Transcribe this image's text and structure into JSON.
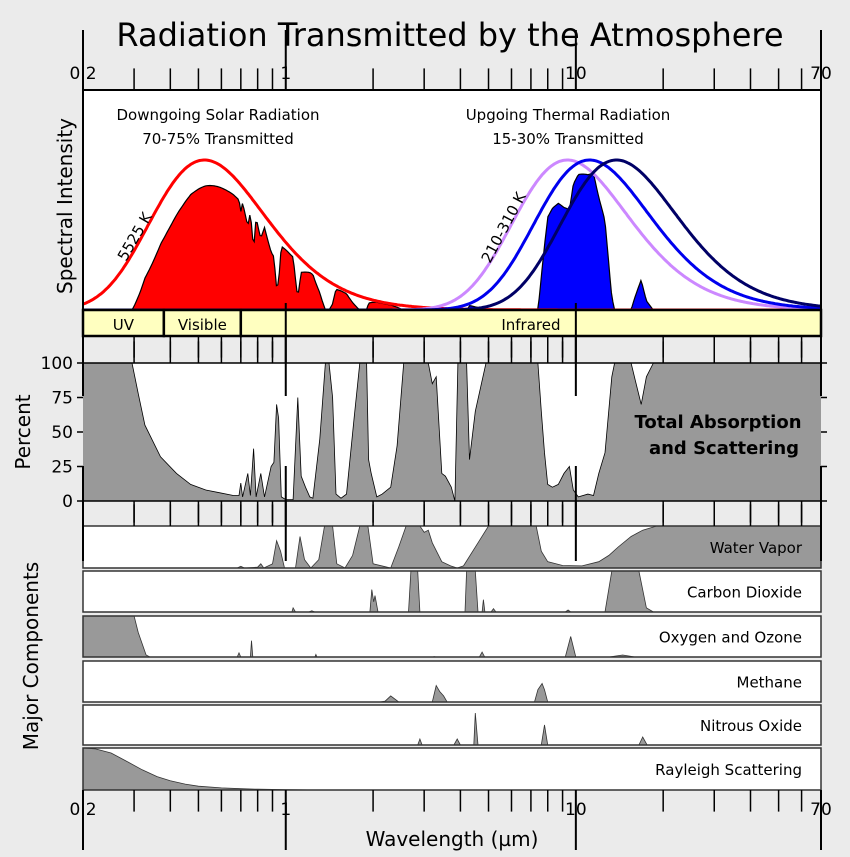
{
  "chart_data": {
    "type": "area",
    "title": "Radiation Transmitted by the Atmosphere",
    "xlabel": "Wavelength (µm)",
    "x_scale": "log",
    "xlim": [
      0.2,
      70
    ],
    "x_tick_labels": [
      "0.2",
      "1",
      "10",
      "70"
    ],
    "x_ticks": [
      0.2,
      1,
      10,
      70
    ],
    "grid": false,
    "colors": {
      "background": "#ebebeb",
      "solar": "#ff0000",
      "thermal_fill": "#0000ff",
      "thermal_curves": [
        "#cc88ff",
        "#0000ee",
        "#000066"
      ],
      "absorption_fill": "#999999",
      "band_fill": "#ffffc0"
    },
    "spectral_panel": {
      "ylabel": "Spectral Intensity",
      "solar": {
        "heading": "Downgoing Solar Radiation",
        "subheading": "70-75% Transmitted",
        "label": "5525 K",
        "temperature_K": 5525
      },
      "thermal": {
        "heading": "Upgoing Thermal Radiation",
        "subheading": "15-30% Transmitted",
        "label": "210-310 K",
        "temperatures_K": [
          310,
          260,
          210
        ]
      },
      "bands": [
        {
          "name": "UV",
          "range": [
            0.2,
            0.38
          ]
        },
        {
          "name": "Visible",
          "range": [
            0.38,
            0.7
          ]
        },
        {
          "name": "Infrared",
          "range": [
            0.7,
            70
          ]
        }
      ]
    },
    "total_panel": {
      "ylabel": "Percent",
      "ylim": [
        0,
        100
      ],
      "y_tick_labels": [
        "0",
        "25",
        "50",
        "75",
        "100"
      ],
      "y_ticks": [
        0,
        25,
        50,
        75,
        100
      ],
      "label_line1": "Total Absorption",
      "label_line2": "and Scattering",
      "series": [
        [
          0.2,
          100
        ],
        [
          0.295,
          100
        ],
        [
          0.31,
          78
        ],
        [
          0.327,
          55
        ],
        [
          0.37,
          32
        ],
        [
          0.42,
          20
        ],
        [
          0.47,
          12
        ],
        [
          0.53,
          8
        ],
        [
          0.59,
          6
        ],
        [
          0.66,
          4
        ],
        [
          0.69,
          4
        ],
        [
          0.7,
          13
        ],
        [
          0.71,
          3
        ],
        [
          0.74,
          20
        ],
        [
          0.755,
          4
        ],
        [
          0.775,
          38
        ],
        [
          0.79,
          3
        ],
        [
          0.82,
          20
        ],
        [
          0.845,
          3
        ],
        [
          0.89,
          25
        ],
        [
          0.91,
          28
        ],
        [
          0.93,
          70
        ],
        [
          0.945,
          60
        ],
        [
          0.965,
          3
        ],
        [
          1.0,
          1
        ],
        [
          1.06,
          1
        ],
        [
          1.1,
          75
        ],
        [
          1.13,
          18
        ],
        [
          1.17,
          10
        ],
        [
          1.21,
          3
        ],
        [
          1.24,
          2
        ],
        [
          1.31,
          45
        ],
        [
          1.37,
          100
        ],
        [
          1.41,
          100
        ],
        [
          1.45,
          75
        ],
        [
          1.49,
          5
        ],
        [
          1.55,
          2
        ],
        [
          1.62,
          5
        ],
        [
          1.72,
          60
        ],
        [
          1.8,
          100
        ],
        [
          1.9,
          100
        ],
        [
          1.93,
          30
        ],
        [
          1.97,
          20
        ],
        [
          2.06,
          3
        ],
        [
          2.15,
          5
        ],
        [
          2.3,
          10
        ],
        [
          2.42,
          40
        ],
        [
          2.55,
          100
        ],
        [
          3.1,
          100
        ],
        [
          3.2,
          85
        ],
        [
          3.3,
          90
        ],
        [
          3.45,
          20
        ],
        [
          3.55,
          18
        ],
        [
          3.72,
          10
        ],
        [
          3.83,
          0
        ],
        [
          3.92,
          100
        ],
        [
          4.2,
          100
        ],
        [
          4.3,
          30
        ],
        [
          4.5,
          65
        ],
        [
          4.9,
          100
        ],
        [
          7.4,
          100
        ],
        [
          7.6,
          65
        ],
        [
          7.8,
          35
        ],
        [
          8.0,
          12
        ],
        [
          8.3,
          10
        ],
        [
          8.7,
          12
        ],
        [
          9.1,
          20
        ],
        [
          9.5,
          25
        ],
        [
          9.8,
          8
        ],
        [
          10.2,
          3
        ],
        [
          11.0,
          5
        ],
        [
          11.5,
          4
        ],
        [
          12.0,
          20
        ],
        [
          12.6,
          35
        ],
        [
          13.3,
          90
        ],
        [
          13.6,
          100
        ],
        [
          15.5,
          100
        ],
        [
          16.0,
          88
        ],
        [
          16.8,
          70
        ],
        [
          17.5,
          90
        ],
        [
          18.5,
          100
        ],
        [
          70,
          100
        ]
      ]
    },
    "components_panel": {
      "ylabel": "Major Components",
      "components": [
        {
          "name": "Water Vapor",
          "series": [
            [
              0.2,
              0
            ],
            [
              0.68,
              0
            ],
            [
              0.7,
              4
            ],
            [
              0.72,
              0
            ],
            [
              0.8,
              2
            ],
            [
              0.82,
              10
            ],
            [
              0.84,
              0
            ],
            [
              0.9,
              10
            ],
            [
              0.93,
              65
            ],
            [
              0.96,
              40
            ],
            [
              0.99,
              0
            ],
            [
              1.08,
              0
            ],
            [
              1.12,
              75
            ],
            [
              1.16,
              20
            ],
            [
              1.22,
              0
            ],
            [
              1.3,
              20
            ],
            [
              1.36,
              100
            ],
            [
              1.45,
              100
            ],
            [
              1.5,
              10
            ],
            [
              1.6,
              0
            ],
            [
              1.7,
              30
            ],
            [
              1.8,
              100
            ],
            [
              1.92,
              100
            ],
            [
              2.0,
              10
            ],
            [
              2.3,
              0
            ],
            [
              2.45,
              50
            ],
            [
              2.6,
              100
            ],
            [
              2.9,
              100
            ],
            [
              3.0,
              85
            ],
            [
              3.1,
              90
            ],
            [
              3.2,
              60
            ],
            [
              3.45,
              15
            ],
            [
              3.7,
              5
            ],
            [
              3.9,
              0
            ],
            [
              4.1,
              5
            ],
            [
              4.6,
              60
            ],
            [
              5.0,
              100
            ],
            [
              7.3,
              100
            ],
            [
              7.6,
              40
            ],
            [
              8.0,
              15
            ],
            [
              9.0,
              6
            ],
            [
              10.5,
              5
            ],
            [
              12.0,
              15
            ],
            [
              13.0,
              30
            ],
            [
              14.0,
              50
            ],
            [
              15.5,
              75
            ],
            [
              17.0,
              90
            ],
            [
              19.0,
              100
            ],
            [
              70,
              100
            ]
          ]
        },
        {
          "name": "Carbon Dioxide",
          "series": [
            [
              0.2,
              0
            ],
            [
              1.05,
              0
            ],
            [
              1.06,
              10
            ],
            [
              1.08,
              0
            ],
            [
              1.2,
              0
            ],
            [
              1.23,
              3
            ],
            [
              1.26,
              0
            ],
            [
              1.95,
              0
            ],
            [
              1.98,
              55
            ],
            [
              2.01,
              25
            ],
            [
              2.03,
              40
            ],
            [
              2.08,
              0
            ],
            [
              2.65,
              0
            ],
            [
              2.7,
              100
            ],
            [
              2.85,
              100
            ],
            [
              2.9,
              0
            ],
            [
              4.15,
              0
            ],
            [
              4.2,
              100
            ],
            [
              4.5,
              100
            ],
            [
              4.6,
              0
            ],
            [
              4.75,
              0
            ],
            [
              4.8,
              30
            ],
            [
              4.86,
              0
            ],
            [
              5.1,
              0
            ],
            [
              5.2,
              8
            ],
            [
              5.3,
              0
            ],
            [
              9.2,
              0
            ],
            [
              9.4,
              5
            ],
            [
              9.6,
              0
            ],
            [
              12.6,
              0
            ],
            [
              13.3,
              100
            ],
            [
              16.5,
              100
            ],
            [
              17.5,
              10
            ],
            [
              18.5,
              0
            ],
            [
              70,
              0
            ]
          ]
        },
        {
          "name": "Oxygen and Ozone",
          "series": [
            [
              0.2,
              100
            ],
            [
              0.3,
              100
            ],
            [
              0.31,
              60
            ],
            [
              0.33,
              5
            ],
            [
              0.34,
              0
            ],
            [
              0.68,
              0
            ],
            [
              0.69,
              10
            ],
            [
              0.7,
              0
            ],
            [
              0.755,
              0
            ],
            [
              0.762,
              40
            ],
            [
              0.77,
              0
            ],
            [
              1.26,
              0
            ],
            [
              1.27,
              6
            ],
            [
              1.28,
              0
            ],
            [
              3.2,
              0
            ],
            [
              3.25,
              1
            ],
            [
              3.3,
              0
            ],
            [
              4.65,
              0
            ],
            [
              4.75,
              12
            ],
            [
              4.85,
              0
            ],
            [
              9.2,
              0
            ],
            [
              9.6,
              50
            ],
            [
              10.0,
              0
            ],
            [
              13.0,
              0
            ],
            [
              14.5,
              5
            ],
            [
              16.0,
              0
            ],
            [
              70,
              0
            ]
          ]
        },
        {
          "name": "Methane",
          "series": [
            [
              0.2,
              0
            ],
            [
              2.1,
              0
            ],
            [
              2.2,
              2
            ],
            [
              2.3,
              15
            ],
            [
              2.4,
              5
            ],
            [
              2.45,
              0
            ],
            [
              3.2,
              0
            ],
            [
              3.3,
              40
            ],
            [
              3.4,
              25
            ],
            [
              3.5,
              15
            ],
            [
              3.6,
              0
            ],
            [
              7.2,
              0
            ],
            [
              7.4,
              30
            ],
            [
              7.65,
              45
            ],
            [
              7.8,
              30
            ],
            [
              8.0,
              0
            ],
            [
              70,
              0
            ]
          ]
        },
        {
          "name": "Nitrous Oxide",
          "series": [
            [
              0.2,
              0
            ],
            [
              2.85,
              0
            ],
            [
              2.9,
              15
            ],
            [
              2.95,
              0
            ],
            [
              3.8,
              0
            ],
            [
              3.9,
              15
            ],
            [
              4.0,
              0
            ],
            [
              4.45,
              0
            ],
            [
              4.5,
              80
            ],
            [
              4.6,
              0
            ],
            [
              7.6,
              0
            ],
            [
              7.8,
              50
            ],
            [
              8.0,
              0
            ],
            [
              16.5,
              0
            ],
            [
              17.0,
              20
            ],
            [
              17.6,
              0
            ],
            [
              70,
              0
            ]
          ]
        },
        {
          "name": "Rayleigh Scattering",
          "series": [
            [
              0.2,
              100
            ],
            [
              0.22,
              98
            ],
            [
              0.25,
              88
            ],
            [
              0.28,
              70
            ],
            [
              0.32,
              48
            ],
            [
              0.36,
              32
            ],
            [
              0.4,
              22
            ],
            [
              0.45,
              14
            ],
            [
              0.5,
              9
            ],
            [
              0.6,
              5
            ],
            [
              0.7,
              3
            ],
            [
              0.8,
              2
            ],
            [
              1.0,
              1
            ],
            [
              1.3,
              0
            ],
            [
              70,
              0
            ]
          ]
        }
      ]
    }
  }
}
